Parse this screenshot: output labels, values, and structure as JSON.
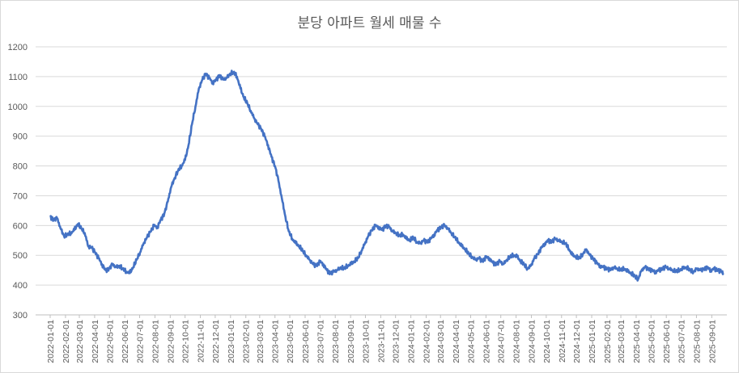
{
  "chart_data": {
    "type": "line",
    "title": "분당 아파트 월세 매물 수",
    "xlabel": "",
    "ylabel": "",
    "ylim": [
      300,
      1200
    ],
    "yticks": [
      300,
      400,
      500,
      600,
      700,
      800,
      900,
      1000,
      1100,
      1200
    ],
    "grid": true,
    "legend": "none",
    "line_color": "#4472C4",
    "x_tick_labels": [
      "2022-01-01",
      "2022-02-01",
      "2022-03-01",
      "2022-04-01",
      "2022-05-01",
      "2022-06-01",
      "2022-07-01",
      "2022-08-01",
      "2022-09-01",
      "2022-10-01",
      "2022-11-01",
      "2022-12-01",
      "2023-01-01",
      "2023-02-01",
      "2023-03-01",
      "2023-04-01",
      "2023-05-01",
      "2023-06-01",
      "2023-07-01",
      "2023-08-01",
      "2023-09-01",
      "2023-10-01",
      "2023-11-01",
      "2023-12-01",
      "2024-01-01",
      "2024-02-01",
      "2024-03-01",
      "2024-04-01",
      "2024-05-01",
      "2024-06-01",
      "2024-07-01",
      "2024-08-01",
      "2024-09-01",
      "2024-10-01",
      "2024-11-01",
      "2024-12-01",
      "2025-01-01",
      "2025-02-01",
      "2025-03-01",
      "2025-04-01",
      "2025-05-01",
      "2025-06-01",
      "2025-07-01",
      "2025-08-01",
      "2025-09-01"
    ],
    "x_range": [
      "2022-01-01",
      "2025-09-25"
    ],
    "series": [
      {
        "values": [
          [
            "2022-01-01",
            630
          ],
          [
            "2022-01-08",
            620
          ],
          [
            "2022-01-15",
            625
          ],
          [
            "2022-01-22",
            590
          ],
          [
            "2022-01-29",
            565
          ],
          [
            "2022-02-05",
            570
          ],
          [
            "2022-02-12",
            575
          ],
          [
            "2022-02-19",
            585
          ],
          [
            "2022-02-26",
            605
          ],
          [
            "2022-03-05",
            590
          ],
          [
            "2022-03-12",
            575
          ],
          [
            "2022-03-19",
            530
          ],
          [
            "2022-03-26",
            525
          ],
          [
            "2022-04-02",
            510
          ],
          [
            "2022-04-09",
            490
          ],
          [
            "2022-04-16",
            470
          ],
          [
            "2022-04-23",
            450
          ],
          [
            "2022-04-30",
            455
          ],
          [
            "2022-05-07",
            470
          ],
          [
            "2022-05-14",
            460
          ],
          [
            "2022-05-21",
            465
          ],
          [
            "2022-05-28",
            455
          ],
          [
            "2022-06-04",
            445
          ],
          [
            "2022-06-11",
            440
          ],
          [
            "2022-06-18",
            460
          ],
          [
            "2022-06-25",
            485
          ],
          [
            "2022-07-02",
            510
          ],
          [
            "2022-07-09",
            540
          ],
          [
            "2022-07-16",
            560
          ],
          [
            "2022-07-23",
            580
          ],
          [
            "2022-07-30",
            600
          ],
          [
            "2022-08-06",
            595
          ],
          [
            "2022-08-13",
            620
          ],
          [
            "2022-08-20",
            640
          ],
          [
            "2022-08-27",
            680
          ],
          [
            "2022-09-03",
            730
          ],
          [
            "2022-09-10",
            760
          ],
          [
            "2022-09-17",
            785
          ],
          [
            "2022-09-24",
            800
          ],
          [
            "2022-10-01",
            820
          ],
          [
            "2022-10-08",
            870
          ],
          [
            "2022-10-15",
            940
          ],
          [
            "2022-10-22",
            1000
          ],
          [
            "2022-10-29",
            1060
          ],
          [
            "2022-11-05",
            1090
          ],
          [
            "2022-11-12",
            1110
          ],
          [
            "2022-11-19",
            1095
          ],
          [
            "2022-11-26",
            1080
          ],
          [
            "2022-12-03",
            1090
          ],
          [
            "2022-12-10",
            1105
          ],
          [
            "2022-12-17",
            1090
          ],
          [
            "2022-12-24",
            1095
          ],
          [
            "2022-12-31",
            1110
          ],
          [
            "2023-01-07",
            1115
          ],
          [
            "2023-01-14",
            1100
          ],
          [
            "2023-01-21",
            1060
          ],
          [
            "2023-01-28",
            1030
          ],
          [
            "2023-02-04",
            1010
          ],
          [
            "2023-02-11",
            985
          ],
          [
            "2023-02-18",
            960
          ],
          [
            "2023-02-25",
            940
          ],
          [
            "2023-03-04",
            925
          ],
          [
            "2023-03-11",
            900
          ],
          [
            "2023-03-18",
            870
          ],
          [
            "2023-03-25",
            830
          ],
          [
            "2023-04-01",
            800
          ],
          [
            "2023-04-08",
            750
          ],
          [
            "2023-04-15",
            690
          ],
          [
            "2023-04-22",
            630
          ],
          [
            "2023-04-29",
            580
          ],
          [
            "2023-05-06",
            555
          ],
          [
            "2023-05-13",
            540
          ],
          [
            "2023-05-20",
            530
          ],
          [
            "2023-05-27",
            515
          ],
          [
            "2023-06-03",
            500
          ],
          [
            "2023-06-10",
            485
          ],
          [
            "2023-06-17",
            470
          ],
          [
            "2023-06-24",
            465
          ],
          [
            "2023-07-01",
            480
          ],
          [
            "2023-07-08",
            470
          ],
          [
            "2023-07-15",
            450
          ],
          [
            "2023-07-22",
            440
          ],
          [
            "2023-07-29",
            445
          ],
          [
            "2023-08-05",
            450
          ],
          [
            "2023-08-12",
            460
          ],
          [
            "2023-08-19",
            455
          ],
          [
            "2023-08-26",
            465
          ],
          [
            "2023-09-02",
            470
          ],
          [
            "2023-09-09",
            480
          ],
          [
            "2023-09-16",
            490
          ],
          [
            "2023-09-23",
            515
          ],
          [
            "2023-09-30",
            540
          ],
          [
            "2023-10-07",
            565
          ],
          [
            "2023-10-14",
            585
          ],
          [
            "2023-10-21",
            600
          ],
          [
            "2023-10-28",
            595
          ],
          [
            "2023-11-04",
            585
          ],
          [
            "2023-11-11",
            600
          ],
          [
            "2023-11-18",
            595
          ],
          [
            "2023-11-25",
            580
          ],
          [
            "2023-12-02",
            575
          ],
          [
            "2023-12-09",
            565
          ],
          [
            "2023-12-16",
            570
          ],
          [
            "2023-12-23",
            555
          ],
          [
            "2023-12-30",
            550
          ],
          [
            "2024-01-06",
            560
          ],
          [
            "2024-01-13",
            545
          ],
          [
            "2024-01-20",
            540
          ],
          [
            "2024-01-27",
            550
          ],
          [
            "2024-02-03",
            545
          ],
          [
            "2024-02-10",
            555
          ],
          [
            "2024-02-17",
            570
          ],
          [
            "2024-02-24",
            585
          ],
          [
            "2024-03-02",
            595
          ],
          [
            "2024-03-09",
            600
          ],
          [
            "2024-03-16",
            590
          ],
          [
            "2024-03-23",
            575
          ],
          [
            "2024-03-30",
            560
          ],
          [
            "2024-04-06",
            545
          ],
          [
            "2024-04-13",
            530
          ],
          [
            "2024-04-20",
            520
          ],
          [
            "2024-04-27",
            505
          ],
          [
            "2024-05-04",
            495
          ],
          [
            "2024-05-11",
            485
          ],
          [
            "2024-05-18",
            490
          ],
          [
            "2024-05-25",
            480
          ],
          [
            "2024-06-01",
            495
          ],
          [
            "2024-06-08",
            490
          ],
          [
            "2024-06-15",
            475
          ],
          [
            "2024-06-22",
            470
          ],
          [
            "2024-06-29",
            480
          ],
          [
            "2024-07-06",
            470
          ],
          [
            "2024-07-13",
            485
          ],
          [
            "2024-07-20",
            495
          ],
          [
            "2024-07-27",
            500
          ],
          [
            "2024-08-03",
            495
          ],
          [
            "2024-08-10",
            480
          ],
          [
            "2024-08-17",
            470
          ],
          [
            "2024-08-24",
            455
          ],
          [
            "2024-08-31",
            465
          ],
          [
            "2024-09-07",
            490
          ],
          [
            "2024-09-14",
            505
          ],
          [
            "2024-09-21",
            525
          ],
          [
            "2024-09-28",
            540
          ],
          [
            "2024-10-05",
            550
          ],
          [
            "2024-10-12",
            545
          ],
          [
            "2024-10-19",
            555
          ],
          [
            "2024-10-26",
            550
          ],
          [
            "2024-11-02",
            545
          ],
          [
            "2024-11-09",
            540
          ],
          [
            "2024-11-16",
            520
          ],
          [
            "2024-11-23",
            500
          ],
          [
            "2024-11-30",
            495
          ],
          [
            "2024-12-07",
            490
          ],
          [
            "2024-12-14",
            505
          ],
          [
            "2024-12-21",
            520
          ],
          [
            "2024-12-28",
            500
          ],
          [
            "2025-01-04",
            490
          ],
          [
            "2025-01-11",
            475
          ],
          [
            "2025-01-18",
            465
          ],
          [
            "2025-01-25",
            460
          ],
          [
            "2025-02-01",
            455
          ],
          [
            "2025-02-08",
            450
          ],
          [
            "2025-02-15",
            460
          ],
          [
            "2025-02-22",
            455
          ],
          [
            "2025-03-01",
            450
          ],
          [
            "2025-03-08",
            455
          ],
          [
            "2025-03-15",
            445
          ],
          [
            "2025-03-22",
            440
          ],
          [
            "2025-03-29",
            430
          ],
          [
            "2025-04-05",
            420
          ],
          [
            "2025-04-12",
            450
          ],
          [
            "2025-04-19",
            460
          ],
          [
            "2025-04-26",
            455
          ],
          [
            "2025-05-03",
            450
          ],
          [
            "2025-05-10",
            445
          ],
          [
            "2025-05-17",
            450
          ],
          [
            "2025-05-24",
            455
          ],
          [
            "2025-05-31",
            460
          ],
          [
            "2025-06-07",
            455
          ],
          [
            "2025-06-14",
            450
          ],
          [
            "2025-06-21",
            445
          ],
          [
            "2025-06-28",
            450
          ],
          [
            "2025-07-05",
            455
          ],
          [
            "2025-07-12",
            460
          ],
          [
            "2025-07-19",
            450
          ],
          [
            "2025-07-26",
            445
          ],
          [
            "2025-08-02",
            455
          ],
          [
            "2025-08-09",
            450
          ],
          [
            "2025-08-16",
            455
          ],
          [
            "2025-08-23",
            460
          ],
          [
            "2025-08-30",
            450
          ],
          [
            "2025-09-06",
            455
          ],
          [
            "2025-09-13",
            450
          ],
          [
            "2025-09-20",
            445
          ],
          [
            "2025-09-25",
            440
          ]
        ]
      }
    ]
  }
}
